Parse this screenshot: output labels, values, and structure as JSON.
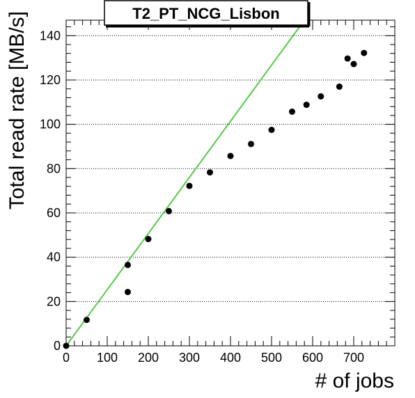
{
  "chart_data": {
    "type": "scatter",
    "title": "T2_PT_NCG_Lisbon",
    "xlabel": "# of jobs",
    "ylabel": "Total read rate [MB/s]",
    "xlim": [
      0,
      800
    ],
    "ylim": [
      0,
      147
    ],
    "x_ticks": [
      0,
      100,
      200,
      300,
      400,
      500,
      600,
      700
    ],
    "y_ticks": [
      0,
      20,
      40,
      60,
      80,
      100,
      120,
      140
    ],
    "grid": "horizontal dotted",
    "points": [
      {
        "x": 0,
        "y": 0
      },
      {
        "x": 50,
        "y": 11.7
      },
      {
        "x": 150,
        "y": 24.3
      },
      {
        "x": 150,
        "y": 36.5
      },
      {
        "x": 200,
        "y": 48.2
      },
      {
        "x": 250,
        "y": 60.8
      },
      {
        "x": 300,
        "y": 72.2
      },
      {
        "x": 350,
        "y": 78.3
      },
      {
        "x": 400,
        "y": 85.7
      },
      {
        "x": 450,
        "y": 91.1
      },
      {
        "x": 500,
        "y": 97.5
      },
      {
        "x": 550,
        "y": 105.7
      },
      {
        "x": 585,
        "y": 108.8
      },
      {
        "x": 620,
        "y": 112.6
      },
      {
        "x": 665,
        "y": 117.0
      },
      {
        "x": 685,
        "y": 129.7
      },
      {
        "x": 700,
        "y": 127.2
      },
      {
        "x": 725,
        "y": 132.2
      }
    ],
    "fit_line": {
      "color": "#55c94a",
      "x": [
        0,
        580
      ],
      "y": [
        0,
        147
      ]
    },
    "colors": {
      "points": "#000000",
      "grid": "#000000",
      "frame": "#000000"
    }
  }
}
